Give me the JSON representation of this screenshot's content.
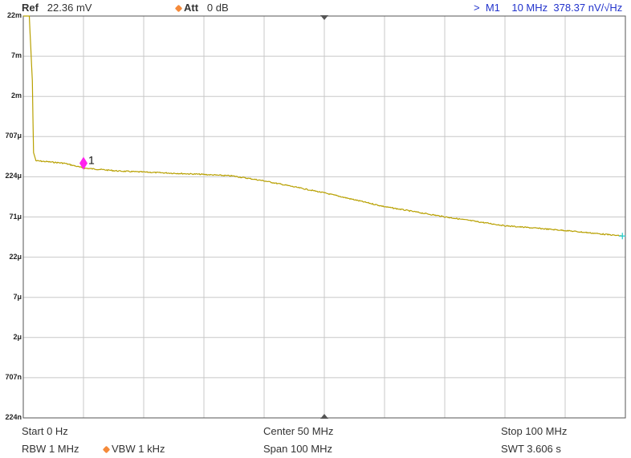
{
  "header": {
    "ref_label": "Ref",
    "ref_value": "22.36 mV",
    "att_label": "Att",
    "att_value": "0 dB",
    "marker_prefix": ">",
    "marker_name": "M1",
    "marker_freq": "10 MHz",
    "marker_value": "378.37 nV/√Hz"
  },
  "footer": {
    "start": "Start  0 Hz",
    "center": "Center  50 MHz",
    "stop": "Stop  100 MHz",
    "rbw": "RBW  1 MHz",
    "vbw": "VBW  1 kHz",
    "span": "Span     100 MHz",
    "swt": "SWT  3.606 s"
  },
  "chart_data": {
    "type": "line",
    "title": "",
    "xlabel": "",
    "ylabel": "",
    "x_unit": "MHz",
    "y_unit": "V",
    "xlim": [
      0,
      100
    ],
    "ylim": [
      2.236e-07,
      0.02236
    ],
    "y_scale": "log",
    "grid": true,
    "y_tick_labels": [
      "22m",
      "7m",
      "2m",
      "707μ",
      "224μ",
      "71μ",
      "22μ",
      "7μ",
      "2μ",
      "707n",
      "224n"
    ],
    "series": [
      {
        "color": "#b8a000",
        "x": [
          0,
          1.0,
          1.5,
          1.7,
          2.1,
          6.8,
          10,
          16,
          29.5,
          34.8,
          40,
          50,
          60,
          70,
          80,
          90,
          99.5
        ],
        "y": [
          0.02236,
          0.02236,
          0.0035,
          0.000447,
          0.000354,
          0.00033,
          0.000287,
          0.000263,
          0.00024,
          0.000229,
          0.000199,
          0.000141,
          9.5e-05,
          7.1e-05,
          5.5e-05,
          4.8e-05,
          4.1e-05
        ]
      }
    ],
    "markers": [
      {
        "label": "1",
        "x": 10,
        "color": "#ff22ee"
      }
    ],
    "trace_end_marker_color": "#22cccc"
  },
  "colors": {
    "att_dot": "#f58a3a",
    "header_blue": "#2233cc",
    "grid": "#c8c8c8"
  }
}
